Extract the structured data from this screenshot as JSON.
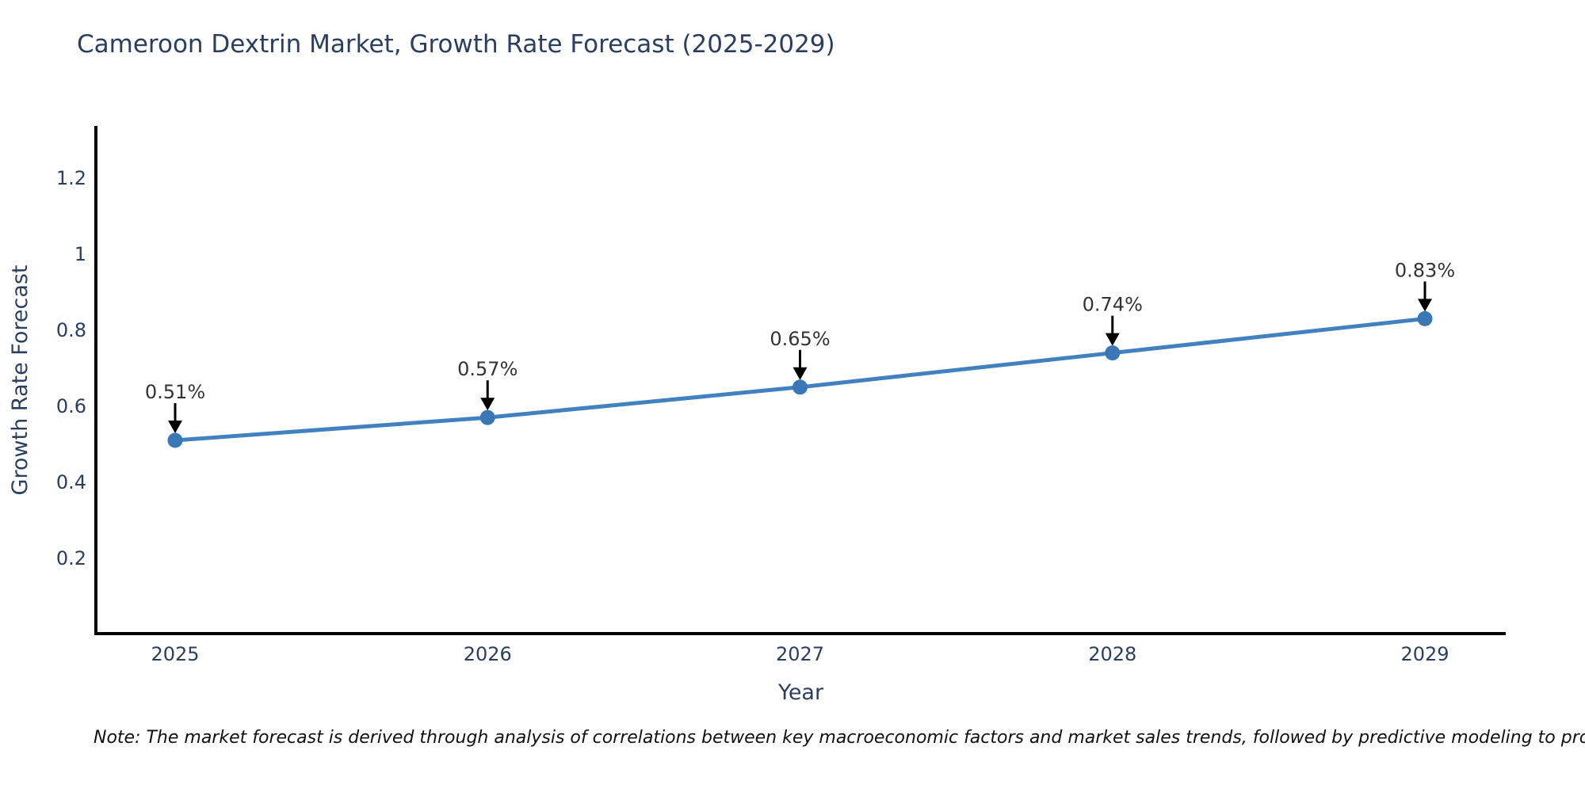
{
  "title": "Cameroon Dextrin Market, Growth Rate Forecast (2025-2029)",
  "note": "Note: The market forecast is derived through analysis of correlations between key macroeconomic factors and market sales trends, followed by predictive modeling to project future sales",
  "chart_data": {
    "type": "line",
    "title": "Cameroon Dextrin Market, Growth Rate Forecast (2025-2029)",
    "xlabel": "Year",
    "ylabel": "Growth Rate Forecast",
    "x": [
      2025,
      2026,
      2027,
      2028,
      2029
    ],
    "series": [
      {
        "name": "Growth Rate Forecast",
        "values": [
          0.51,
          0.57,
          0.65,
          0.74,
          0.83
        ]
      }
    ],
    "annotations": [
      "0.51%",
      "0.57%",
      "0.65%",
      "0.74%",
      "0.83%"
    ],
    "yticks": [
      0.2,
      0.4,
      0.6,
      0.8,
      1,
      1.2
    ],
    "ylim": [
      0.03,
      1.34
    ],
    "grid": false,
    "legend": false,
    "marker_style": "circle-with-down-arrow-annotation",
    "colors": {
      "line": "#4181c0",
      "marker": "#3a77b6",
      "arrow": "#000000",
      "axis": "#000000",
      "axis_text": "#2a3f5f",
      "annotation_text": "#333333",
      "title_text": "#2a3f5f",
      "note_text": "#111111"
    }
  }
}
